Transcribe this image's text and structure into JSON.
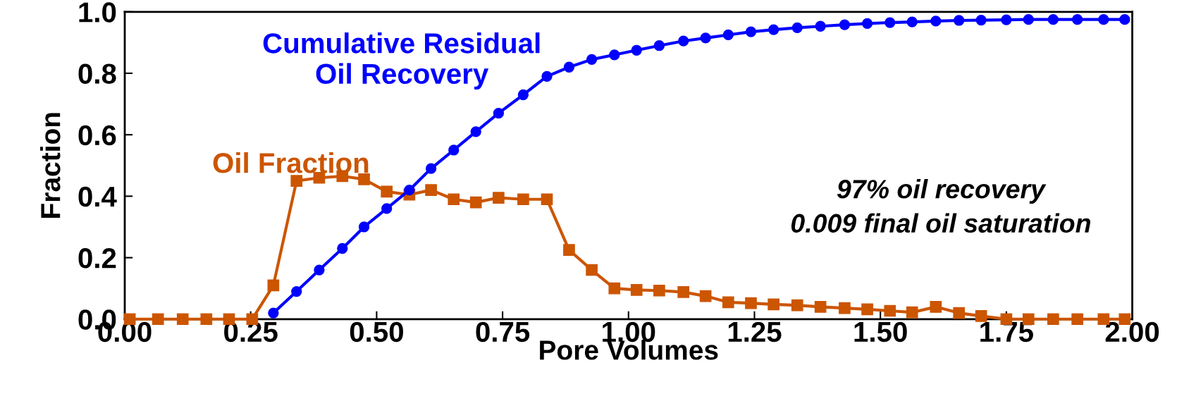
{
  "chart_data": {
    "type": "line",
    "xlabel": "Pore Volumes",
    "ylabel": "Fraction",
    "x": [
      0.01,
      0.066,
      0.115,
      0.162,
      0.207,
      0.253,
      0.295,
      0.341,
      0.386,
      0.432,
      0.475,
      0.52,
      0.565,
      0.608,
      0.653,
      0.697,
      0.742,
      0.791,
      0.838,
      0.882,
      0.927,
      0.972,
      1.016,
      1.061,
      1.109,
      1.153,
      1.198,
      1.243,
      1.288,
      1.335,
      1.381,
      1.429,
      1.474,
      1.519,
      1.563,
      1.61,
      1.656,
      1.7,
      1.75,
      1.794,
      1.843,
      1.891,
      1.943,
      1.985
    ],
    "series": [
      {
        "name": "Cumulative Residual\nOil Recovery",
        "color": "#0000ff",
        "marker": "circle",
        "values": [
          null,
          null,
          null,
          null,
          null,
          null,
          0.02,
          0.09,
          0.16,
          0.23,
          0.3,
          0.36,
          0.42,
          0.49,
          0.55,
          0.61,
          0.67,
          0.73,
          0.79,
          0.82,
          0.845,
          0.86,
          0.875,
          0.89,
          0.905,
          0.915,
          0.925,
          0.935,
          0.942,
          0.948,
          0.953,
          0.958,
          0.962,
          0.965,
          0.967,
          0.97,
          0.972,
          0.973,
          0.974,
          0.975,
          0.975,
          0.975,
          0.975,
          0.975
        ]
      },
      {
        "name": "Oil Fraction",
        "color": "#cc5500",
        "marker": "square",
        "values": [
          0,
          0,
          0,
          0,
          0,
          0,
          0.11,
          0.45,
          0.46,
          0.465,
          0.455,
          0.415,
          0.405,
          0.42,
          0.39,
          0.38,
          0.395,
          0.39,
          0.39,
          0.225,
          0.16,
          0.1,
          0.095,
          0.093,
          0.088,
          0.075,
          0.055,
          0.052,
          0.048,
          0.045,
          0.04,
          0.036,
          0.032,
          0.027,
          0.022,
          0.04,
          0.02,
          0.01,
          0,
          0,
          0,
          0,
          0,
          0
        ]
      }
    ],
    "xlim": [
      0,
      2
    ],
    "ylim": [
      0,
      1
    ],
    "xticks": [
      {
        "value": 0,
        "label": "0.00"
      },
      0.25,
      {
        "value": 0.5,
        "label": "0.50"
      },
      0.75,
      {
        "value": 1,
        "label": "1.00"
      },
      1.25,
      {
        "value": 1.5,
        "label": "1.50"
      },
      1.75,
      {
        "value": 2,
        "label": "2.00"
      }
    ],
    "yticks": [
      {
        "value": 0,
        "label": "0.0"
      },
      0.2,
      0.4,
      0.6,
      0.8,
      {
        "value": 1,
        "label": "1.0"
      }
    ],
    "annotations": [
      "97% oil recovery\n0.009 final oil saturation"
    ],
    "grid": false,
    "legend": false
  }
}
